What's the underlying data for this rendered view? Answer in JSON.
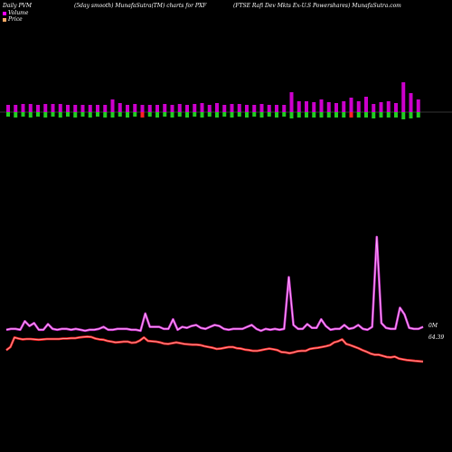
{
  "header": {
    "left": "Daily PVM",
    "middle": "(5day smooth) MunafaSutra(TM) charts for PXF",
    "right": "(FTSE Rafi  Dev  Mkts Ex-U.S Powershares) MunafaSutra.com"
  },
  "legend": {
    "volume_label": "Volume",
    "price_label": "Price",
    "volume_color": "#ff00ff",
    "price_color": "#ffaa66"
  },
  "colors": {
    "background": "#000000",
    "volume_up": "#cc00cc",
    "volume_down": "#22cc22",
    "volume_spike": "#ff2222",
    "volume_line": "#cc33cc",
    "price_line": "#ff2222"
  },
  "chart_data": [
    {
      "type": "bar",
      "values": [
        8,
        -5,
        8,
        -6,
        9,
        -6,
        9,
        -5,
        8,
        -6,
        9,
        -5,
        8,
        -6,
        9,
        -6,
        7,
        -5,
        8,
        -5,
        7,
        -6,
        8,
        -6,
        7,
        -5,
        8,
        -5,
        7,
        -5,
        9,
        -5,
        8,
        -6,
        9,
        -5,
        8,
        -6,
        10,
        -5,
        16,
        -6,
        14,
        -5,
        12,
        -6,
        13,
        -5,
        10,
        -5,
        9,
        -5,
        8,
        -6,
        9,
        -5,
        9,
        -6,
        10,
        -6,
        10,
        -5,
        9,
        -5,
        10,
        -5,
        9,
        -6,
        8,
        -5,
        11,
        -6,
        9,
        -6,
        8,
        -5,
        8,
        -5,
        9,
        -5,
        9,
        -6,
        8,
        -5,
        9,
        -5,
        8,
        -5,
        10,
        -5,
        9,
        -6,
        8,
        -6,
        9,
        -6,
        8,
        -5,
        7,
        -5,
        8,
        -6,
        9,
        -5,
        9,
        -5,
        8,
        -5,
        9,
        -5,
        10,
        -6,
        9,
        -5,
        10,
        -5,
        9,
        -6,
        8,
        -5,
        8,
        -5,
        9,
        -5,
        8,
        -5,
        9,
        -6,
        8,
        -5,
        8,
        -6,
        9,
        -6,
        8,
        -5,
        8,
        -5,
        9,
        -5,
        9,
        -6,
        8,
        -5,
        9,
        -5,
        8,
        -5,
        7,
        -6,
        8,
        -5,
        9,
        -5,
        8,
        -5,
        9,
        -6,
        8,
        -5,
        9,
        -5,
        9,
        -5,
        8,
        -6,
        8,
        -5,
        9,
        -5,
        8,
        -6,
        9,
        -5,
        8,
        -6,
        9,
        -6,
        10,
        -5,
        8,
        -5,
        22,
        -8,
        13,
        -6,
        12,
        -6,
        11,
        -5,
        14,
        -6,
        11,
        -6,
        10,
        -6,
        12,
        -5,
        16,
        -6,
        12,
        -6,
        17,
        -6,
        9,
        -8,
        11,
        -5,
        12,
        -6,
        10,
        -6,
        33,
        -8,
        21,
        -7,
        14,
        -5,
        10,
        -6,
        16,
        -6,
        15,
        -6,
        9,
        -5,
        10,
        -5,
        9,
        -5
      ],
      "bars": [
        {
          "v": 8,
          "c": "volume_up",
          "d": -5
        },
        {
          "v": 8,
          "c": "volume_up",
          "d": -6
        }
      ]
    },
    {
      "type": "line",
      "series": [
        {
          "values": [
            3,
            4,
            4,
            3,
            12,
            7,
            10,
            3,
            3,
            9,
            4,
            3,
            4,
            4,
            3,
            4,
            3,
            2,
            3,
            3,
            4,
            6,
            3,
            3,
            4,
            4,
            4,
            3,
            3,
            2,
            20,
            6,
            6,
            6,
            4,
            4,
            14,
            3,
            6,
            5,
            7,
            8,
            5,
            4,
            6,
            8,
            7,
            4,
            3,
            4,
            4,
            4,
            6,
            8,
            4,
            2,
            4,
            3,
            4,
            3,
            4,
            58,
            8,
            4,
            4,
            9,
            5,
            5,
            14,
            7,
            3,
            4,
            4,
            8,
            4,
            5,
            8,
            4,
            3,
            6,
            100,
            10,
            5,
            4,
            4,
            26,
            19,
            5,
            4,
            4,
            6
          ]
        },
        {
          "values": [
            58,
            50,
            25,
            28,
            30,
            29,
            29,
            30,
            31,
            30,
            29,
            29,
            29,
            29,
            28,
            28,
            27,
            27,
            25,
            24,
            23,
            24,
            28,
            30,
            31,
            34,
            36,
            38,
            37,
            36,
            36,
            39,
            38,
            33,
            25,
            34,
            35,
            36,
            38,
            41,
            42,
            40,
            38,
            40,
            42,
            43,
            44,
            44,
            45,
            48,
            50,
            52,
            55,
            54,
            52,
            50,
            50,
            53,
            54,
            57,
            58,
            60,
            60,
            58,
            56,
            54,
            56,
            58,
            63,
            64,
            66,
            64,
            61,
            60,
            60,
            55,
            53,
            52,
            50,
            48,
            45,
            38,
            35,
            30,
            42,
            45,
            49,
            53,
            58,
            62,
            67,
            70,
            70,
            73,
            76,
            77,
            75,
            80,
            82,
            84,
            85,
            86,
            87,
            88
          ]
        }
      ],
      "end_labels": [
        "0M",
        "64.39"
      ]
    }
  ]
}
